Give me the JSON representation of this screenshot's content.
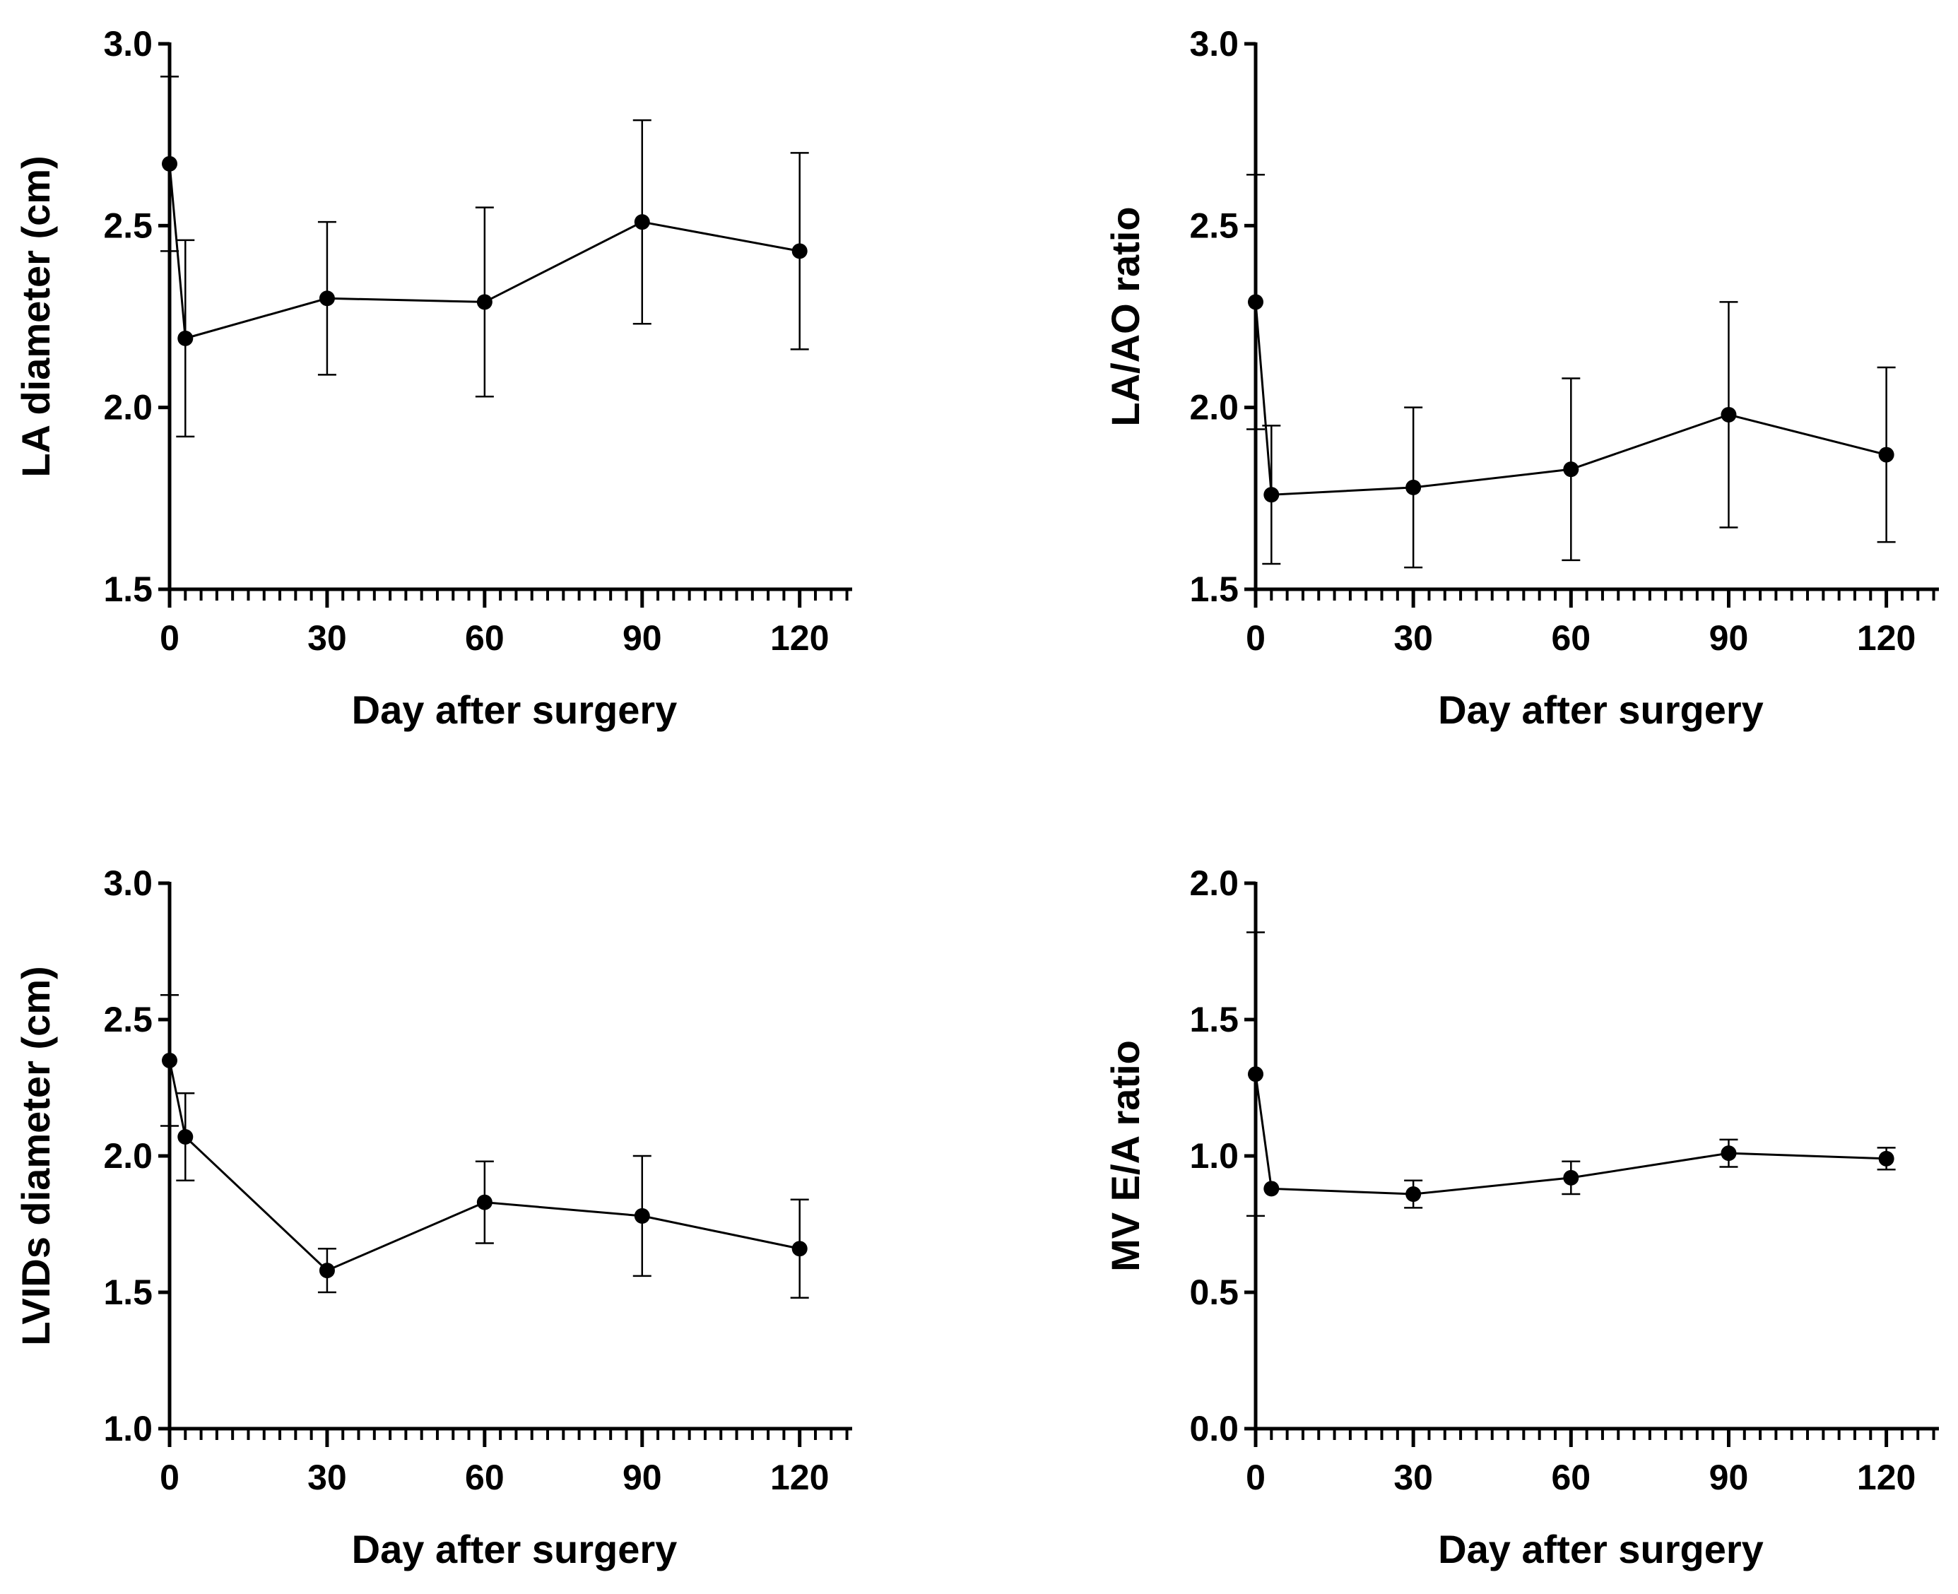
{
  "chart_data": [
    {
      "type": "line",
      "title": "",
      "xlabel": "Day after surgery",
      "ylabel": "LA  diameter (cm)",
      "xlim": [
        0,
        130
      ],
      "ylim": [
        1.5,
        3.0
      ],
      "xticks": [
        0,
        30,
        60,
        90,
        120
      ],
      "yticks": [
        1.5,
        2.0,
        2.5,
        3.0
      ],
      "xtick_labels": [
        "0",
        "30",
        "60",
        "90",
        "120"
      ],
      "ytick_labels": [
        "1.5",
        "2.0",
        "2.5",
        "3.0"
      ],
      "series": [
        {
          "name": "LA diameter",
          "x": [
            0,
            3,
            30,
            60,
            90,
            120
          ],
          "y": [
            2.67,
            2.19,
            2.3,
            2.29,
            2.51,
            2.43
          ],
          "error": [
            0.24,
            0.27,
            0.21,
            0.26,
            0.28,
            0.27
          ]
        }
      ]
    },
    {
      "type": "line",
      "title": "",
      "xlabel": "Day after surgery",
      "ylabel": "LA/AO ratio",
      "xlim": [
        0,
        130
      ],
      "ylim": [
        1.5,
        3.0
      ],
      "xticks": [
        0,
        30,
        60,
        90,
        120
      ],
      "yticks": [
        1.5,
        2.0,
        2.5,
        3.0
      ],
      "xtick_labels": [
        "0",
        "30",
        "60",
        "90",
        "120"
      ],
      "ytick_labels": [
        "1.5",
        "2.0",
        "2.5",
        "3.0"
      ],
      "series": [
        {
          "name": "LA/AO ratio",
          "x": [
            0,
            3,
            30,
            60,
            90,
            120
          ],
          "y": [
            2.29,
            1.76,
            1.78,
            1.83,
            1.98,
            1.87
          ],
          "error": [
            0.35,
            0.19,
            0.22,
            0.25,
            0.31,
            0.24
          ]
        }
      ]
    },
    {
      "type": "line",
      "title": "",
      "xlabel": "Day after surgery",
      "ylabel": "LVIDs  diameter (cm)",
      "xlim": [
        0,
        130
      ],
      "ylim": [
        1.0,
        3.0
      ],
      "xticks": [
        0,
        30,
        60,
        90,
        120
      ],
      "yticks": [
        1.0,
        1.5,
        2.0,
        2.5,
        3.0
      ],
      "xtick_labels": [
        "0",
        "30",
        "60",
        "90",
        "120"
      ],
      "ytick_labels": [
        "1.0",
        "1.5",
        "2.0",
        "2.5",
        "3.0"
      ],
      "series": [
        {
          "name": "LVIDs diameter",
          "x": [
            0,
            3,
            30,
            60,
            90,
            120
          ],
          "y": [
            2.35,
            2.07,
            1.58,
            1.83,
            1.78,
            1.66
          ],
          "error": [
            0.24,
            0.16,
            0.08,
            0.15,
            0.22,
            0.18
          ]
        }
      ]
    },
    {
      "type": "line",
      "title": "",
      "xlabel": "Day after surgery",
      "ylabel": "MV E/A ratio",
      "xlim": [
        0,
        130
      ],
      "ylim": [
        0.0,
        2.0
      ],
      "xticks": [
        0,
        30,
        60,
        90,
        120
      ],
      "yticks": [
        0.0,
        0.5,
        1.0,
        1.5,
        2.0
      ],
      "xtick_labels": [
        "0",
        "30",
        "60",
        "90",
        "120"
      ],
      "ytick_labels": [
        "0.0",
        "0.5",
        "1.0",
        "1.5",
        "2.0"
      ],
      "series": [
        {
          "name": "MV E/A ratio",
          "x": [
            0,
            3,
            30,
            60,
            90,
            120
          ],
          "y": [
            1.3,
            0.88,
            0.86,
            0.92,
            1.01,
            0.99
          ],
          "error": [
            0.52,
            0.0,
            0.05,
            0.06,
            0.05,
            0.04
          ]
        }
      ]
    }
  ]
}
